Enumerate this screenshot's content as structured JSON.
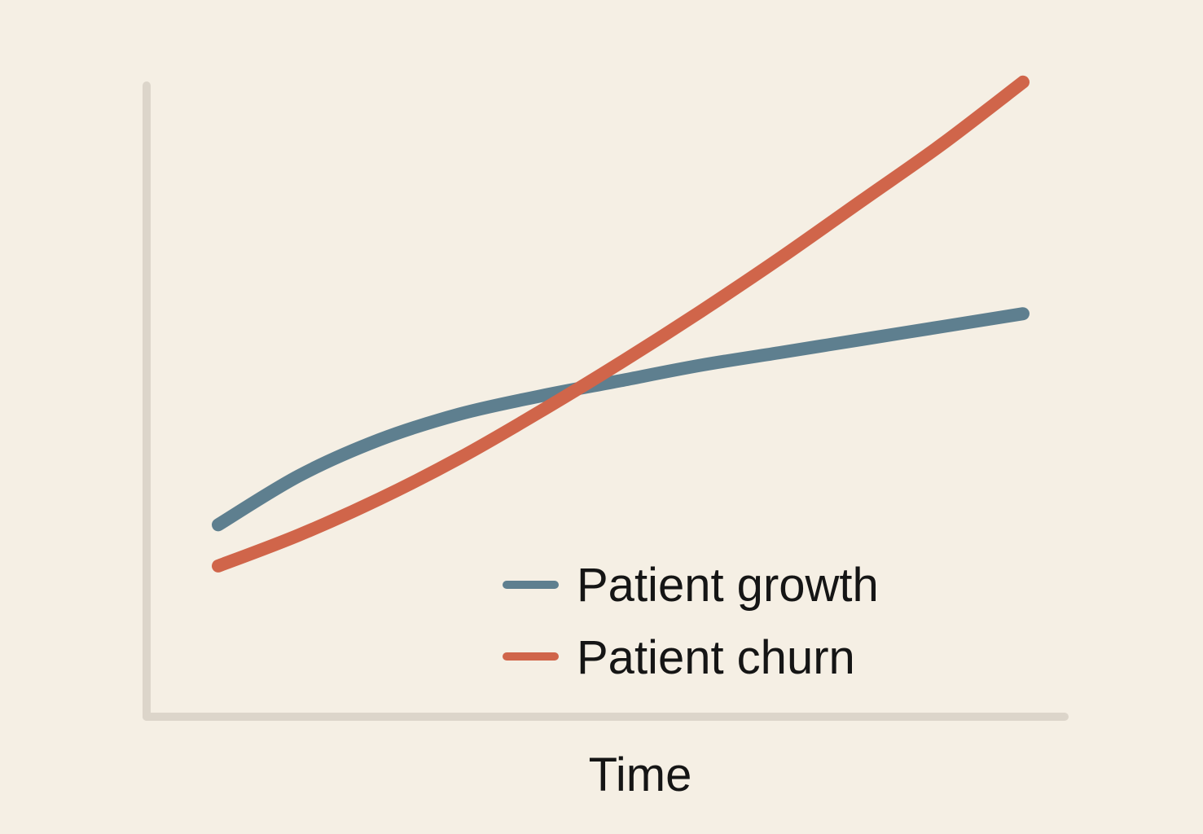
{
  "chart_data": {
    "type": "line",
    "title": "",
    "xlabel": "Time",
    "ylabel": "",
    "xlim": [
      0,
      10
    ],
    "ylim": [
      0,
      10
    ],
    "grid": false,
    "legend_position": "bottom-right",
    "x": [
      0,
      1,
      2,
      3,
      4,
      5,
      6,
      7,
      8,
      9,
      10
    ],
    "series": [
      {
        "name": "Patient growth",
        "color": "#5e7f8f",
        "values": [
          2.4,
          3.35,
          4.05,
          4.55,
          4.9,
          5.2,
          5.5,
          5.75,
          6.0,
          6.25,
          6.5
        ]
      },
      {
        "name": "Patient churn",
        "color": "#d0654a",
        "values": [
          1.6,
          2.2,
          2.9,
          3.7,
          4.6,
          5.55,
          6.55,
          7.6,
          8.7,
          9.8,
          11.0
        ]
      }
    ]
  }
}
